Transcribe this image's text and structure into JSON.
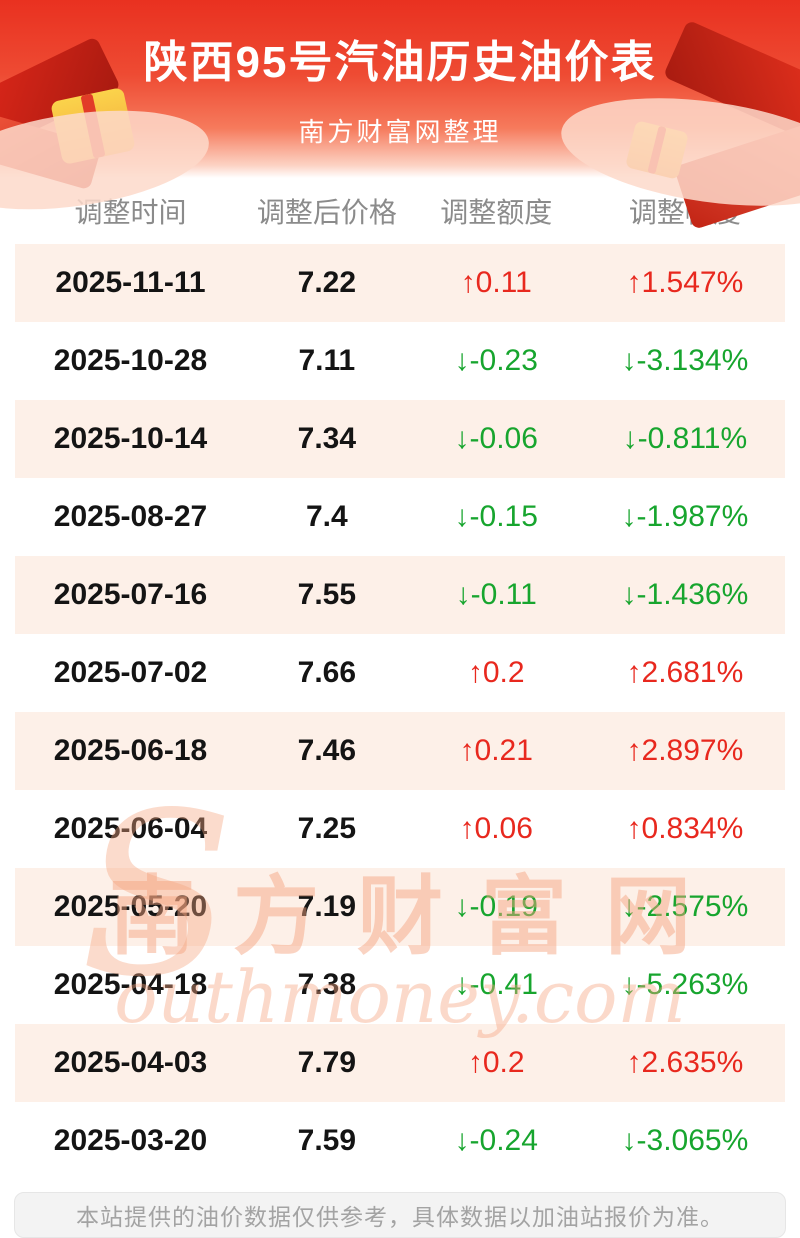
{
  "header": {
    "title": "陕西95号汽油历史油价表",
    "subtitle": "南方财富网整理"
  },
  "table": {
    "columns": [
      "调整时间",
      "调整后价格",
      "调整额度",
      "调整幅度"
    ],
    "rows": [
      {
        "date": "2025-11-11",
        "price": "7.22",
        "change": "↑0.11",
        "percent": "↑1.547%",
        "direction": "up"
      },
      {
        "date": "2025-10-28",
        "price": "7.11",
        "change": "↓-0.23",
        "percent": "↓-3.134%",
        "direction": "down"
      },
      {
        "date": "2025-10-14",
        "price": "7.34",
        "change": "↓-0.06",
        "percent": "↓-0.811%",
        "direction": "down"
      },
      {
        "date": "2025-08-27",
        "price": "7.4",
        "change": "↓-0.15",
        "percent": "↓-1.987%",
        "direction": "down"
      },
      {
        "date": "2025-07-16",
        "price": "7.55",
        "change": "↓-0.11",
        "percent": "↓-1.436%",
        "direction": "down"
      },
      {
        "date": "2025-07-02",
        "price": "7.66",
        "change": "↑0.2",
        "percent": "↑2.681%",
        "direction": "up"
      },
      {
        "date": "2025-06-18",
        "price": "7.46",
        "change": "↑0.21",
        "percent": "↑2.897%",
        "direction": "up"
      },
      {
        "date": "2025-06-04",
        "price": "7.25",
        "change": "↑0.06",
        "percent": "↑0.834%",
        "direction": "up"
      },
      {
        "date": "2025-05-20",
        "price": "7.19",
        "change": "↓-0.19",
        "percent": "↓-2.575%",
        "direction": "down"
      },
      {
        "date": "2025-04-18",
        "price": "7.38",
        "change": "↓-0.41",
        "percent": "↓-5.263%",
        "direction": "down"
      },
      {
        "date": "2025-04-03",
        "price": "7.79",
        "change": "↑0.2",
        "percent": "↑2.635%",
        "direction": "up"
      },
      {
        "date": "2025-03-20",
        "price": "7.59",
        "change": "↓-0.24",
        "percent": "↓-3.065%",
        "direction": "down"
      }
    ]
  },
  "watermark": {
    "cn": "南方财富网",
    "en": "outhmoney.com",
    "initial": "S"
  },
  "footer": {
    "text": "本站提供的油价数据仅供参考，具体数据以加油站报价为准。"
  },
  "colors": {
    "up": "#e8281e",
    "down": "#17a52e",
    "banner_red": "#e93120",
    "row_alt": "#fdf0e8"
  }
}
